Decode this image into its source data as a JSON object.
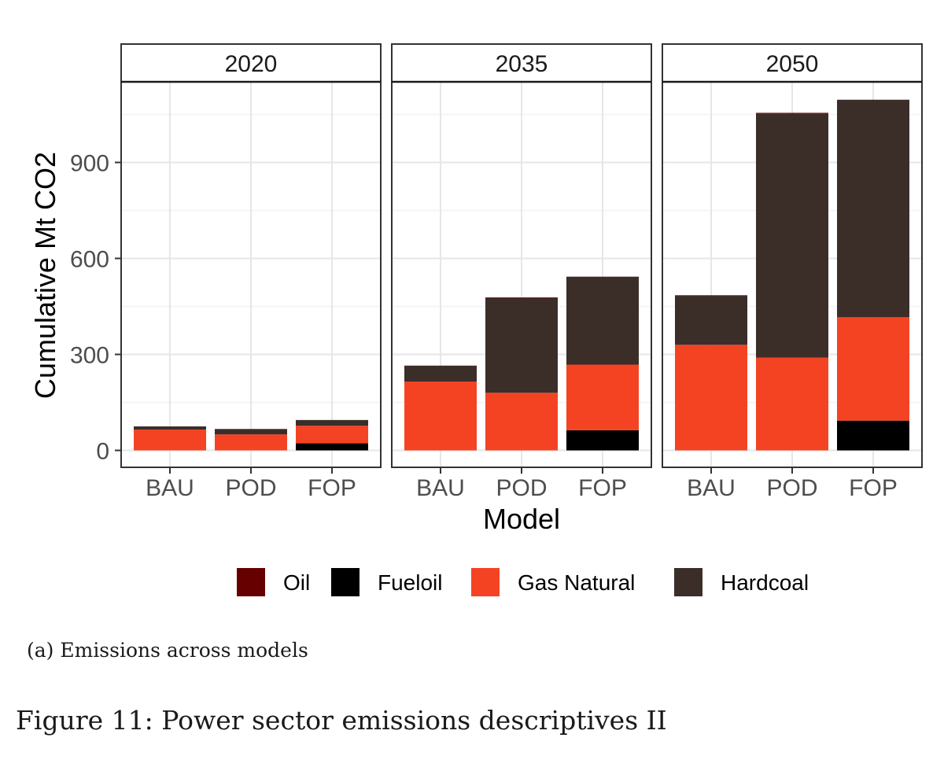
{
  "chart_data": {
    "type": "bar",
    "stacked": true,
    "facets": [
      "2020",
      "2035",
      "2050"
    ],
    "categories": [
      "BAU",
      "POD",
      "FOP"
    ],
    "xlabel": "Model",
    "ylabel": "Cumulative Mt CO2",
    "ylim": [
      -55,
      1135
    ],
    "yticks": [
      0,
      300,
      600,
      900
    ],
    "grid": true,
    "legend_position": "bottom",
    "series": [
      {
        "name": "Oil",
        "color": "#660000",
        "values": [
          [
            0,
            0,
            0
          ],
          [
            0,
            2,
            0
          ],
          [
            0,
            3,
            0
          ]
        ]
      },
      {
        "name": "Fueloil",
        "color": "#000000",
        "values": [
          [
            0,
            0,
            22
          ],
          [
            0,
            0,
            63
          ],
          [
            0,
            0,
            93
          ]
        ]
      },
      {
        "name": "Gas Natural",
        "color": "#f44323",
        "values": [
          [
            65,
            50,
            55
          ],
          [
            215,
            180,
            205
          ],
          [
            330,
            290,
            323
          ]
        ]
      },
      {
        "name": "Hardcoal",
        "color": "#3b2e29",
        "values": [
          [
            10,
            17,
            18
          ],
          [
            50,
            296,
            275
          ],
          [
            155,
            762,
            680
          ]
        ]
      }
    ]
  },
  "subcaption": "(a) Emissions across models",
  "caption": "Figure 11: Power sector emissions descriptives II"
}
